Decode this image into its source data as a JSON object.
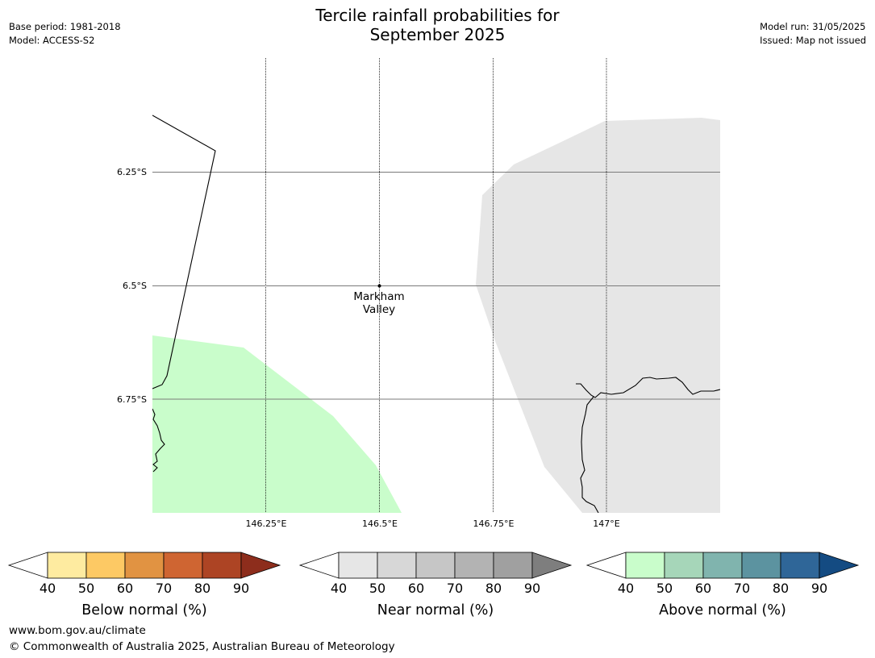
{
  "title_line1": "Tercile rainfall probabilities for",
  "title_line2": "September 2025",
  "meta_left": {
    "base_period": "Base period: 1981-2018",
    "model": "Model: ACCESS-S2"
  },
  "meta_right": {
    "model_run": "Model run: 31/05/2025",
    "issued": "Issued: Map not issued"
  },
  "map": {
    "lat_labels": [
      "6.25°S",
      "6.5°S",
      "6.75°S"
    ],
    "lon_labels": [
      "146.25°E",
      "146.5°E",
      "146.75°E",
      "147°E"
    ],
    "place": {
      "name_line1": "Markham",
      "name_line2": "Valley"
    },
    "colors": {
      "above_normal_40_50": "#c9fdcb",
      "near_normal_40_50": "#e6e6e6",
      "coast": "#000000"
    }
  },
  "colorbars": [
    {
      "label": "Below normal (%)",
      "ticks": [
        "40",
        "50",
        "60",
        "70",
        "80",
        "90"
      ],
      "colors": [
        "#feeba0",
        "#fdc964",
        "#e19342",
        "#cf6532",
        "#ad4424",
        "#8d2d1c"
      ]
    },
    {
      "label": "Near normal (%)",
      "ticks": [
        "40",
        "50",
        "60",
        "70",
        "80",
        "90"
      ],
      "colors": [
        "#e6e6e6",
        "#d7d7d7",
        "#c6c6c6",
        "#b3b3b3",
        "#a0a0a0",
        "#7e7e7e"
      ]
    },
    {
      "label": "Above normal (%)",
      "ticks": [
        "40",
        "50",
        "60",
        "70",
        "80",
        "90"
      ],
      "colors": [
        "#c9fdcb",
        "#a6d6b9",
        "#80b4ae",
        "#5c93a0",
        "#2f6698",
        "#144b82"
      ]
    }
  ],
  "footer": {
    "url": "www.bom.gov.au/climate",
    "copyright": "© Commonwealth of Australia 2025, Australian Bureau of Meteorology"
  }
}
